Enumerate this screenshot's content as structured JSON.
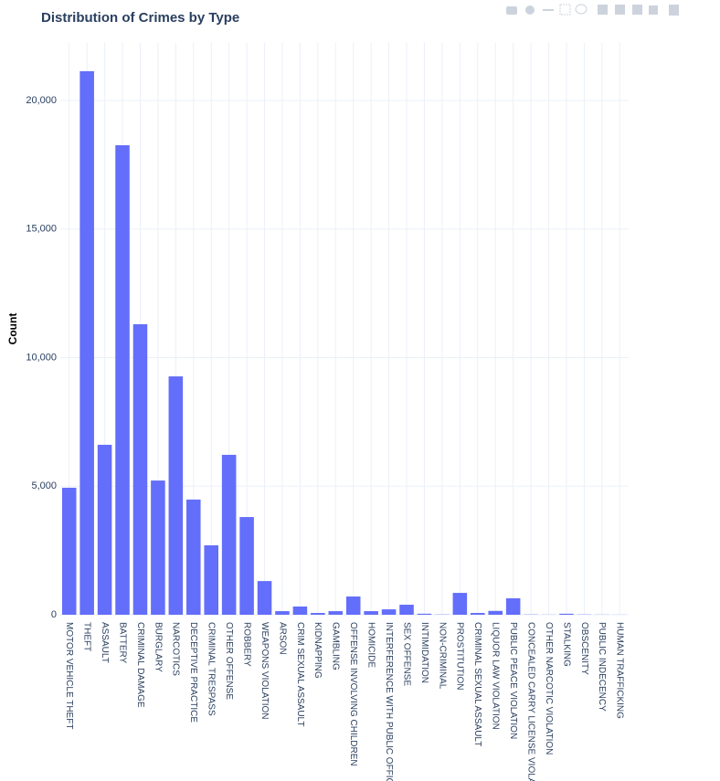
{
  "chart_data": {
    "type": "bar",
    "title": "Distribution of Crimes by Type",
    "y_label": "Count",
    "categories": [
      "MOTOR VEHICLE THEFT",
      "THEFT",
      "ASSAULT",
      "BATTERY",
      "CRIMINAL DAMAGE",
      "BURGLARY",
      "NARCOTICS",
      "DECEPTIVE PRACTICE",
      "CRIMINAL TRESPASS",
      "OTHER OFFENSE",
      "ROBBERY",
      "WEAPONS VIOLATION",
      "ARSON",
      "CRIM SEXUAL ASSAULT",
      "KIDNAPPING",
      "GAMBLING",
      "OFFENSE INVOLVING CHILDREN",
      "HOMICIDE",
      "INTERFERENCE WITH PUBLIC OFFICER",
      "SEX OFFENSE",
      "INTIMIDATION",
      "NON-CRIMINAL",
      "PROSTITUTION",
      "CRIMINAL SEXUAL ASSAULT",
      "LIQUOR LAW VIOLATION",
      "PUBLIC PEACE VIOLATION",
      "CONCEALED CARRY LICENSE VIOLATION",
      "OTHER NARCOTIC VIOLATION",
      "STALKING",
      "OBSCENITY",
      "PUBLIC INDECENCY",
      "HUMAN TRAFFICKING"
    ],
    "values": [
      4940,
      21140,
      6610,
      18260,
      11300,
      5220,
      9270,
      4480,
      2700,
      6220,
      3800,
      1310,
      140,
      320,
      70,
      140,
      710,
      140,
      210,
      390,
      40,
      10,
      850,
      70,
      150,
      640,
      10,
      5,
      40,
      10,
      5,
      3
    ],
    "color": "#636efa",
    "ylim": [
      0,
      22250
    ],
    "yticks": [
      0,
      {
        "value": 5000,
        "label": "5,000"
      },
      {
        "value": 10000,
        "label": "10,000"
      },
      {
        "value": 15000,
        "label": "15,000"
      },
      {
        "value": 20000,
        "label": "20,000"
      }
    ],
    "grid": true
  }
}
